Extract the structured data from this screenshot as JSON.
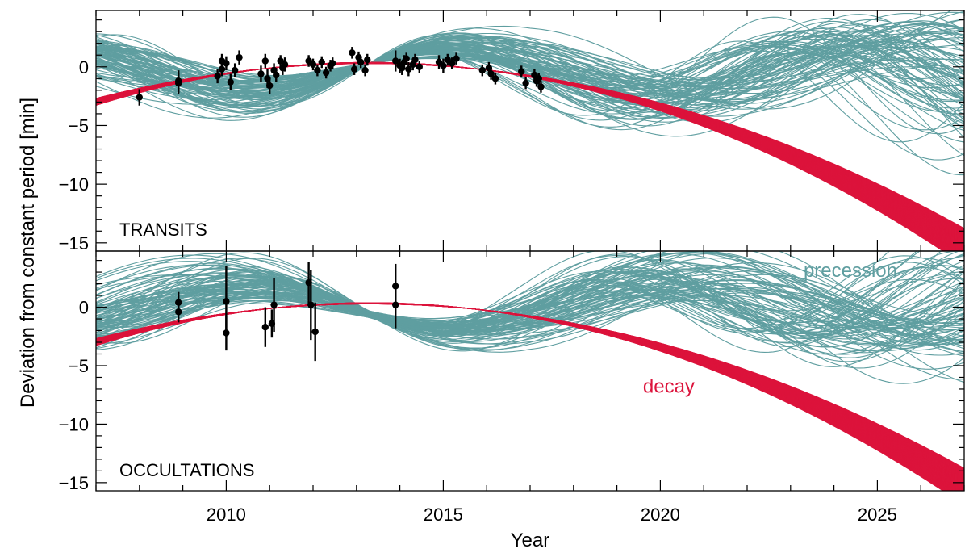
{
  "chart_data": [
    {
      "type": "line",
      "panel_label": "TRANSITS",
      "xlabel": "Year",
      "ylabel": "Deviation from constant period [min]",
      "xlim": [
        2007.0,
        2027.0
      ],
      "ylim": [
        -15.7,
        4.8
      ],
      "x_ticks": [
        2010,
        2015,
        2020,
        2025
      ],
      "y_ticks": [
        0,
        -5,
        -10,
        -15
      ],
      "y_tick_labels": [
        "0",
        "−5",
        "−10",
        "−15"
      ],
      "grid": false,
      "colors": {
        "decay": "#dc143c",
        "precession": "#5f9ea0",
        "data": "#000000"
      },
      "series": [
        {
          "name": "decay",
          "color": "#dc143c",
          "n_curves": 90,
          "model": "quadratic",
          "params": {
            "dP_dt_ms_per_yr": 29,
            "dP_dt_spread": 3,
            "x_peak": 2013.3
          }
        },
        {
          "name": "precession",
          "color": "#5f9ea0",
          "n_curves": 90,
          "model": "apsidal",
          "params": {
            "amplitude_min": 1.8,
            "period_yr": 8.5
          }
        }
      ],
      "points": [
        {
          "x": 2008.0,
          "y": -2.6,
          "err": 0.7
        },
        {
          "x": 2008.9,
          "y": -1.2,
          "err": 0.9
        },
        {
          "x": 2008.9,
          "y": -1.4,
          "err": 0.9
        },
        {
          "x": 2009.8,
          "y": -0.8,
          "err": 0.6
        },
        {
          "x": 2009.9,
          "y": -0.2,
          "err": 0.6
        },
        {
          "x": 2009.9,
          "y": 0.5,
          "err": 0.6
        },
        {
          "x": 2010.0,
          "y": 0.3,
          "err": 0.6
        },
        {
          "x": 2010.1,
          "y": -1.3,
          "err": 0.7
        },
        {
          "x": 2010.2,
          "y": -0.3,
          "err": 0.6
        },
        {
          "x": 2010.3,
          "y": 0.8,
          "err": 0.6
        },
        {
          "x": 2010.8,
          "y": -0.6,
          "err": 0.7
        },
        {
          "x": 2010.9,
          "y": 0.5,
          "err": 0.6
        },
        {
          "x": 2010.95,
          "y": -1.0,
          "err": 0.8
        },
        {
          "x": 2011.0,
          "y": -1.6,
          "err": 0.7
        },
        {
          "x": 2011.1,
          "y": -0.3,
          "err": 0.6
        },
        {
          "x": 2011.15,
          "y": -0.7,
          "err": 0.6
        },
        {
          "x": 2011.25,
          "y": 0.5,
          "err": 0.5
        },
        {
          "x": 2011.3,
          "y": -0.1,
          "err": 0.6
        },
        {
          "x": 2011.35,
          "y": 0.2,
          "err": 0.6
        },
        {
          "x": 2011.9,
          "y": 0.5,
          "err": 0.5
        },
        {
          "x": 2012.0,
          "y": 0.2,
          "err": 0.5
        },
        {
          "x": 2012.1,
          "y": -0.3,
          "err": 0.5
        },
        {
          "x": 2012.2,
          "y": 0.4,
          "err": 0.5
        },
        {
          "x": 2012.3,
          "y": -0.5,
          "err": 0.5
        },
        {
          "x": 2012.4,
          "y": 0.1,
          "err": 0.5
        },
        {
          "x": 2012.45,
          "y": 0.3,
          "err": 0.5
        },
        {
          "x": 2012.9,
          "y": 1.2,
          "err": 0.5
        },
        {
          "x": 2012.95,
          "y": -0.2,
          "err": 0.5
        },
        {
          "x": 2013.05,
          "y": 0.8,
          "err": 0.5
        },
        {
          "x": 2013.1,
          "y": 0.4,
          "err": 0.5
        },
        {
          "x": 2013.2,
          "y": -0.3,
          "err": 0.5
        },
        {
          "x": 2013.25,
          "y": 0.6,
          "err": 0.5
        },
        {
          "x": 2013.9,
          "y": 0.5,
          "err": 0.9
        },
        {
          "x": 2014.0,
          "y": 0.1,
          "err": 0.6
        },
        {
          "x": 2014.05,
          "y": -0.1,
          "err": 0.6
        },
        {
          "x": 2014.1,
          "y": 0.4,
          "err": 0.6
        },
        {
          "x": 2014.15,
          "y": 0.7,
          "err": 0.5
        },
        {
          "x": 2014.2,
          "y": -0.2,
          "err": 0.6
        },
        {
          "x": 2014.3,
          "y": 0.2,
          "err": 0.5
        },
        {
          "x": 2014.35,
          "y": 0.6,
          "err": 0.5
        },
        {
          "x": 2014.45,
          "y": 0.0,
          "err": 0.5
        },
        {
          "x": 2014.9,
          "y": 0.4,
          "err": 0.6
        },
        {
          "x": 2015.0,
          "y": 0.1,
          "err": 0.6
        },
        {
          "x": 2015.1,
          "y": 0.6,
          "err": 0.5
        },
        {
          "x": 2015.2,
          "y": 0.3,
          "err": 0.5
        },
        {
          "x": 2015.3,
          "y": 0.7,
          "err": 0.5
        },
        {
          "x": 2015.9,
          "y": -0.3,
          "err": 0.5
        },
        {
          "x": 2016.05,
          "y": -0.1,
          "err": 0.5
        },
        {
          "x": 2016.1,
          "y": -0.6,
          "err": 0.5
        },
        {
          "x": 2016.2,
          "y": -1.0,
          "err": 0.5
        },
        {
          "x": 2016.8,
          "y": -0.4,
          "err": 0.5
        },
        {
          "x": 2016.9,
          "y": -1.4,
          "err": 0.5
        },
        {
          "x": 2017.1,
          "y": -0.7,
          "err": 0.5
        },
        {
          "x": 2017.15,
          "y": -1.2,
          "err": 0.5
        },
        {
          "x": 2017.2,
          "y": -1.0,
          "err": 0.5
        },
        {
          "x": 2017.25,
          "y": -1.7,
          "err": 0.5
        }
      ]
    },
    {
      "type": "line",
      "panel_label": "OCCULTATIONS",
      "xlabel": "Year",
      "ylabel": "Deviation from constant period [min]",
      "xlim": [
        2007.0,
        2027.0
      ],
      "ylim": [
        -15.7,
        4.8
      ],
      "x_ticks": [
        2010,
        2015,
        2020,
        2025
      ],
      "y_ticks": [
        0,
        -5,
        -10,
        -15
      ],
      "y_tick_labels": [
        "0",
        "−5",
        "−10",
        "−15"
      ],
      "grid": false,
      "colors": {
        "decay": "#dc143c",
        "precession": "#5f9ea0",
        "data": "#000000"
      },
      "annotations": [
        {
          "text": "precession",
          "x": 2023.3,
          "y": 2.6,
          "color": "#5f9ea0"
        },
        {
          "text": "decay",
          "x": 2019.6,
          "y": -7.3,
          "color": "#dc143c"
        }
      ],
      "series": [
        {
          "name": "decay",
          "color": "#dc143c",
          "n_curves": 90,
          "model": "quadratic",
          "params": {
            "dP_dt_ms_per_yr": 29,
            "dP_dt_spread": 3,
            "x_peak": 2013.3
          }
        },
        {
          "name": "precession",
          "color": "#5f9ea0",
          "n_curves": 90,
          "model": "apsidal",
          "params": {
            "amplitude_min": 1.8,
            "period_yr": 8.5
          }
        }
      ],
      "points": [
        {
          "x": 2008.9,
          "y": 0.4,
          "err": 0.9
        },
        {
          "x": 2008.9,
          "y": -0.4,
          "err": 0.9
        },
        {
          "x": 2010.0,
          "y": 0.5,
          "err": 3.0
        },
        {
          "x": 2010.0,
          "y": -2.2,
          "err": 1.5
        },
        {
          "x": 2010.9,
          "y": -1.7,
          "err": 1.7
        },
        {
          "x": 2011.05,
          "y": -1.4,
          "err": 1.2
        },
        {
          "x": 2011.1,
          "y": 0.2,
          "err": 2.3
        },
        {
          "x": 2011.9,
          "y": 2.1,
          "err": 1.8
        },
        {
          "x": 2011.95,
          "y": 0.2,
          "err": 3.0
        },
        {
          "x": 2012.05,
          "y": -2.1,
          "err": 2.5
        },
        {
          "x": 2013.9,
          "y": 1.8,
          "err": 1.9
        },
        {
          "x": 2013.9,
          "y": 0.2,
          "err": 2.0
        }
      ]
    }
  ]
}
